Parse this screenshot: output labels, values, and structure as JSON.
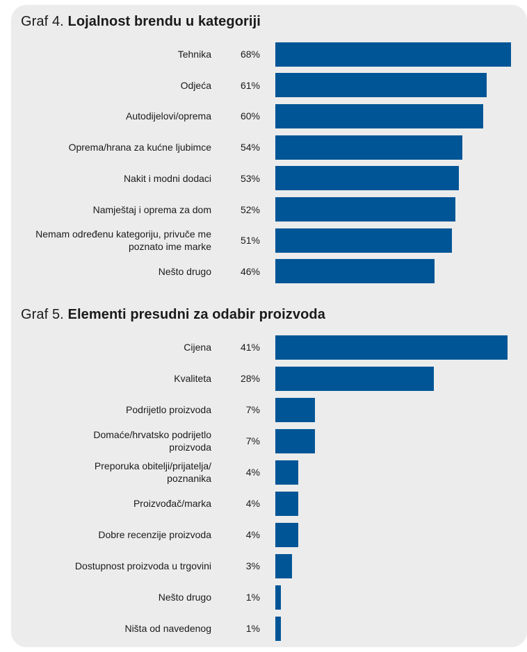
{
  "chart_data": [
    {
      "type": "bar",
      "orientation": "horizontal",
      "title_prefix": "Graf 4.",
      "title": "Lojalnost brendu u kategoriji",
      "categories": [
        "Tehnika",
        "Odjeća",
        "Autodijelovi/oprema",
        "Oprema/hrana za kućne ljubimce",
        "Nakit i modni dodaci",
        "Namještaj i oprema za dom",
        "Nemam određenu kategoriju, privuče me poznato ime marke",
        "Nešto drugo"
      ],
      "values": [
        68,
        61,
        60,
        54,
        53,
        52,
        51,
        46
      ],
      "value_labels": [
        "68%",
        "61%",
        "60%",
        "54%",
        "53%",
        "52%",
        "51%",
        "46%"
      ],
      "unit": "%",
      "bar_color": "#005596",
      "max_value": 68
    },
    {
      "type": "bar",
      "orientation": "horizontal",
      "title_prefix": "Graf 5.",
      "title": "Elementi presudni za odabir proizvoda",
      "categories": [
        "Cijena",
        "Kvaliteta",
        "Podrijetlo proizvoda",
        "Domaće/hrvatsko podrijetlo proizvoda",
        "Preporuka obitelji/prijatelja/ poznanika",
        "Proizvođač/marka",
        "Dobre recenzije proizvoda",
        "Dostupnost proizvoda u trgovini",
        "Nešto drugo",
        "Ništa od navedenog"
      ],
      "values": [
        41,
        28,
        7,
        7,
        4,
        4,
        4,
        3,
        1,
        1
      ],
      "value_labels": [
        "41%",
        "28%",
        "7%",
        "7%",
        "4%",
        "4%",
        "4%",
        "3%",
        "1%",
        "1%"
      ],
      "unit": "%",
      "bar_color": "#005596",
      "max_value": 41
    }
  ]
}
